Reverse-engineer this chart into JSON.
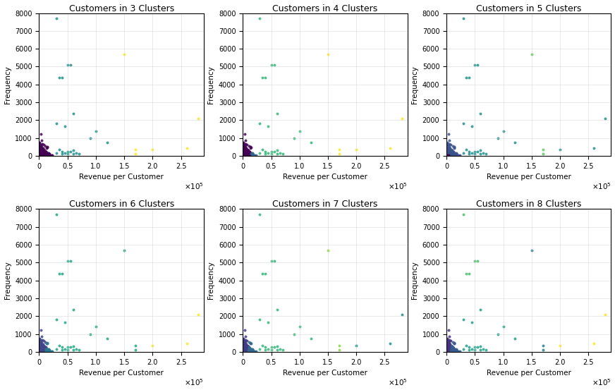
{
  "titles": [
    "Customers in 3 Clusters",
    "Customers in 4 Clusters",
    "Customers in 5 Clusters",
    "Customers in 6 Clusters",
    "Customers in 7 Clusters",
    "Customers in 8 Clusters"
  ],
  "xlabel": "Revenue per Customer",
  "ylabel": "Frequency",
  "xlim": [
    0,
    290000
  ],
  "ylim": [
    0,
    8000
  ],
  "outlier_x": [
    30000,
    40000,
    35000,
    50000,
    55000,
    60000,
    45000,
    30000,
    35000,
    40000,
    30000,
    50000,
    55000,
    45000,
    60000,
    65000,
    70000,
    40000,
    50000,
    60000,
    90000,
    100000,
    120000,
    150000,
    200000,
    260000,
    280000,
    170000,
    170000
  ],
  "outlier_y": [
    7700,
    4400,
    4400,
    5100,
    5100,
    2350,
    1650,
    1800,
    350,
    100,
    150,
    250,
    250,
    150,
    100,
    150,
    100,
    250,
    100,
    300,
    1000,
    1400,
    750,
    5700,
    350,
    450,
    2100,
    100,
    350
  ],
  "n_dense": 300,
  "dense_x_scale": 5000,
  "dense_y_scale": 150,
  "cluster_colors_3": [
    "#440154",
    "#fde725",
    "#21908c"
  ],
  "cluster_colors_4": [
    "#440154",
    "#31688e",
    "#35b779",
    "#fde725"
  ],
  "cluster_colors_5": [
    "#440154",
    "#fde725",
    "#21908c",
    "#3b528b",
    "#5dc863"
  ],
  "cluster_colors_6": [
    "#440154",
    "#414487",
    "#fde725",
    "#22a884",
    "#7ad151",
    "#2a788e"
  ],
  "cluster_colors_7": [
    "#440154",
    "#3b528b",
    "#7ad151",
    "#21908c",
    "#fde725",
    "#365c8d",
    "#1f9e89"
  ],
  "cluster_colors_8": [
    "#440154",
    "#31688e",
    "#365c8d",
    "#277f8e",
    "#fde725",
    "#4ac16d",
    "#a0da39",
    "#1fa187"
  ]
}
